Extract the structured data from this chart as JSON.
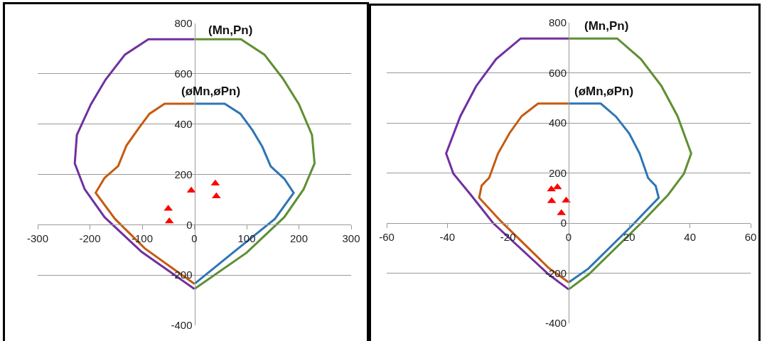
{
  "chart_data": [
    {
      "type": "line",
      "xlim": [
        -300,
        300
      ],
      "xticks": [
        -300,
        -200,
        -100,
        0,
        100,
        200,
        300
      ],
      "ylim": [
        -400,
        800
      ],
      "yticks": [
        -400,
        -200,
        0,
        200,
        400,
        600,
        800
      ],
      "grid": "y",
      "line_style": "solid",
      "annotations": [
        "(Mn,Pn)",
        "(øMn,øPn)"
      ],
      "series": [
        {
          "color": "#5f8f32",
          "marker": "none",
          "x": [
            0,
            89,
            134,
            169,
            200,
            225,
            230,
            209,
            172,
            100,
            0
          ],
          "values": [
            737,
            737,
            676,
            582,
            479,
            357,
            244,
            141,
            30,
            -111,
            -255
          ]
        },
        {
          "color": "#7030a0",
          "marker": "none",
          "x": [
            0,
            -88,
            -133,
            -170,
            -198,
            -225,
            -229,
            -210,
            -172,
            -101,
            0
          ],
          "values": [
            737,
            737,
            676,
            577,
            479,
            357,
            244,
            141,
            30,
            -108,
            -255
          ]
        },
        {
          "color": "#2e75b6",
          "marker": "none",
          "x": [
            0,
            58,
            88,
            111,
            130,
            146,
            172,
            190,
            154,
            81,
            0
          ],
          "values": [
            481,
            481,
            441,
            376,
            310,
            232,
            183,
            127,
            23,
            -99,
            -235
          ]
        },
        {
          "color": "#c55a11",
          "marker": "none",
          "x": [
            0,
            -57,
            -86,
            -106,
            -130,
            -146,
            -172,
            -189,
            -152,
            -95,
            0
          ],
          "values": [
            481,
            481,
            441,
            385,
            315,
            233,
            186,
            127,
            23,
            -94,
            -235
          ]
        },
        {
          "type": "scatter",
          "color": "#ff0000",
          "marker": "triangle",
          "x": [
            40,
            -6,
            42,
            -50,
            -48
          ],
          "values": [
            164,
            136,
            113,
            64,
            14
          ]
        }
      ]
    },
    {
      "type": "line",
      "xlim": [
        -60,
        60
      ],
      "xticks": [
        -60,
        -40,
        -20,
        0,
        20,
        40,
        60
      ],
      "ylim": [
        -400,
        800
      ],
      "yticks": [
        -400,
        -200,
        0,
        200,
        400,
        600,
        800
      ],
      "grid": "y",
      "line_style": "solid",
      "annotations": [
        "(Mn,Pn)",
        "(øMn,øPn)"
      ],
      "series": [
        {
          "color": "#5f8f32",
          "marker": "none",
          "x": [
            0,
            16,
            23.8,
            30.6,
            35.9,
            40.4,
            38,
            32.8,
            23.9,
            6.6,
            0
          ],
          "values": [
            737,
            737,
            655,
            547,
            427,
            278,
            197,
            113,
            0,
            -205,
            -265
          ]
        },
        {
          "color": "#7030a0",
          "marker": "none",
          "x": [
            0,
            -15.8,
            -23.9,
            -30.5,
            -35.7,
            -40.4,
            -38,
            -32.4,
            -24.9,
            -6.6,
            0
          ],
          "values": [
            737,
            737,
            655,
            547,
            427,
            278,
            197,
            115,
            0,
            -205,
            -265
          ]
        },
        {
          "color": "#2e75b6",
          "marker": "none",
          "x": [
            0,
            10.6,
            15.6,
            20,
            23.4,
            26.2,
            28.7,
            29.7,
            20.3,
            6.5,
            0
          ],
          "values": [
            477,
            477,
            425,
            357,
            278,
            180,
            148,
            101,
            -17,
            -182,
            -237
          ]
        },
        {
          "color": "#c55a11",
          "marker": "none",
          "x": [
            0,
            -10.1,
            -15.5,
            -19.5,
            -23.3,
            -26.2,
            -28.7,
            -29.5,
            -22.4,
            -6.6,
            0
          ],
          "values": [
            477,
            477,
            427,
            359,
            278,
            181,
            150,
            101,
            8,
            -179,
            -237
          ]
        },
        {
          "type": "scatter",
          "color": "#ff0000",
          "marker": "triangle",
          "x": [
            -5.7,
            -3.7,
            -5.6,
            -0.8,
            -2.4
          ],
          "values": [
            135,
            143,
            88,
            90,
            40
          ]
        }
      ]
    }
  ]
}
